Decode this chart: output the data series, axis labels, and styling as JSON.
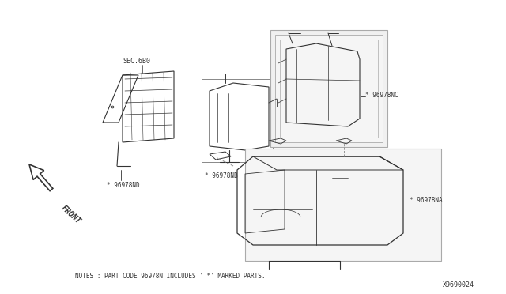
{
  "bg_color": "#f5f5f5",
  "line_color": "#555555",
  "dark_color": "#333333",
  "fig_width": 6.4,
  "fig_height": 3.72,
  "dpi": 100,
  "notes_text": "NOTES : PART CODE 96978N INCLUDES ' *' MARKED PARTS.",
  "diagram_id": "X9690024",
  "label_sec6b0": "SEC.6B0",
  "label_nb": "* 96978NB",
  "label_nd": "* 96978ND",
  "label_nc": "* 96978NC",
  "label_na": "* 96978NA",
  "label_front": "FRONT"
}
